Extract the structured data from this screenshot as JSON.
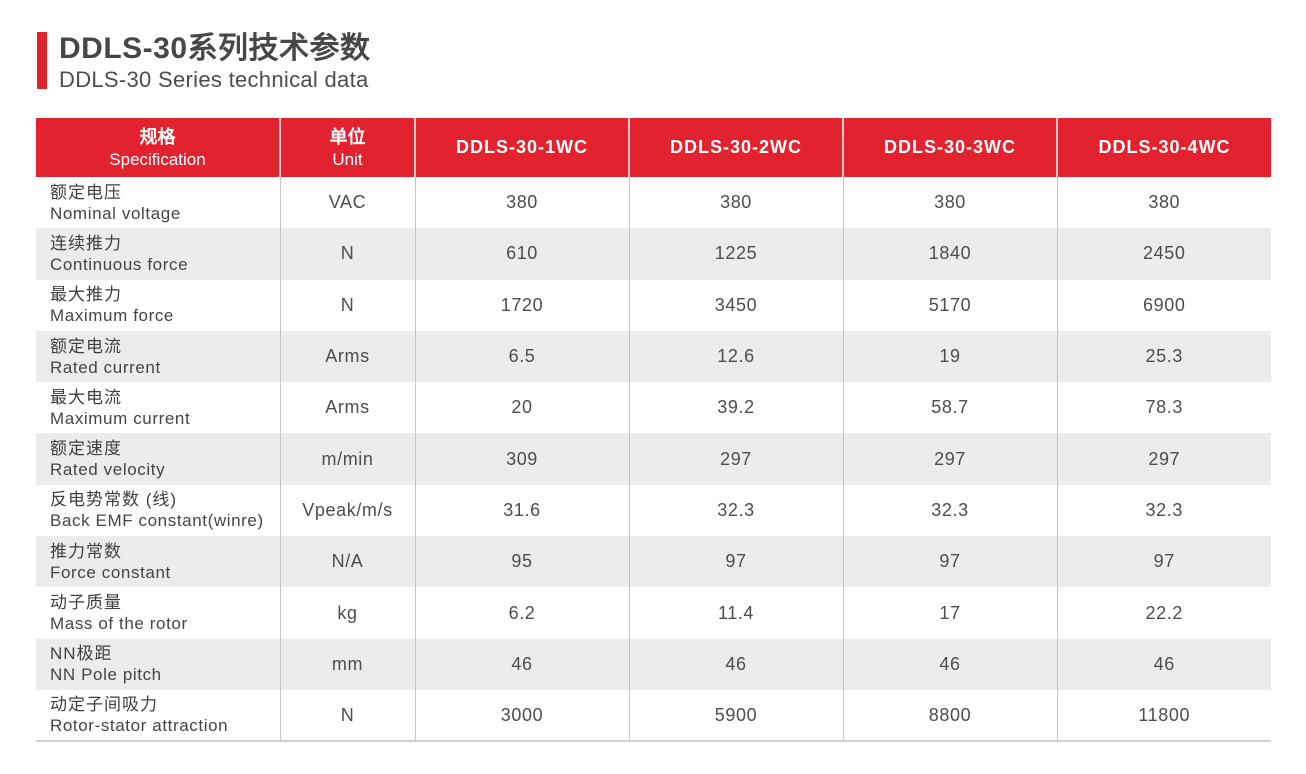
{
  "header": {
    "title_cn": "DDLS-30系列技术参数",
    "title_en": "DDLS-30 Series technical data"
  },
  "table": {
    "spec_header": {
      "cn": "规格",
      "en": "Specification"
    },
    "unit_header": {
      "cn": "单位",
      "en": "Unit"
    },
    "models": [
      "DDLS-30-1WC",
      "DDLS-30-2WC",
      "DDLS-30-3WC",
      "DDLS-30-4WC"
    ],
    "rows": [
      {
        "cn": "额定电压",
        "en": "Nominal voltage",
        "unit": "VAC",
        "values": [
          "380",
          "380",
          "380",
          "380"
        ]
      },
      {
        "cn": "连续推力",
        "en": "Continuous force",
        "unit": "N",
        "values": [
          "610",
          "1225",
          "1840",
          "2450"
        ]
      },
      {
        "cn": "最大推力",
        "en": "Maximum force",
        "unit": "N",
        "values": [
          "1720",
          "3450",
          "5170",
          "6900"
        ]
      },
      {
        "cn": "额定电流",
        "en": "Rated current",
        "unit": "Arms",
        "values": [
          "6.5",
          "12.6",
          "19",
          "25.3"
        ]
      },
      {
        "cn": "最大电流",
        "en": "Maximum current",
        "unit": "Arms",
        "values": [
          "20",
          "39.2",
          "58.7",
          "78.3"
        ]
      },
      {
        "cn": "额定速度",
        "en": "Rated velocity",
        "unit": "m/min",
        "values": [
          "309",
          "297",
          "297",
          "297"
        ]
      },
      {
        "cn": "反电势常数 (线)",
        "en": "Back EMF constant(winre)",
        "unit": "Vpeak/m/s",
        "values": [
          "31.6",
          "32.3",
          "32.3",
          "32.3"
        ]
      },
      {
        "cn": "推力常数",
        "en": "Force constant",
        "unit": "N/A",
        "values": [
          "95",
          "97",
          "97",
          "97"
        ]
      },
      {
        "cn": "动子质量",
        "en": "Mass of the rotor",
        "unit": "kg",
        "values": [
          "6.2",
          "11.4",
          "17",
          "22.2"
        ]
      },
      {
        "cn": "NN极距",
        "en": "NN Pole pitch",
        "unit": "mm",
        "values": [
          "46",
          "46",
          "46",
          "46"
        ]
      },
      {
        "cn": "动定子间吸力",
        "en": "Rotor-stator attraction",
        "unit": "N",
        "values": [
          "3000",
          "5900",
          "8800",
          "11800"
        ]
      }
    ]
  },
  "colors": {
    "accent_red": "#e3222f",
    "stripe_gray": "#ececec",
    "divider_gray": "#c6c6c6"
  }
}
